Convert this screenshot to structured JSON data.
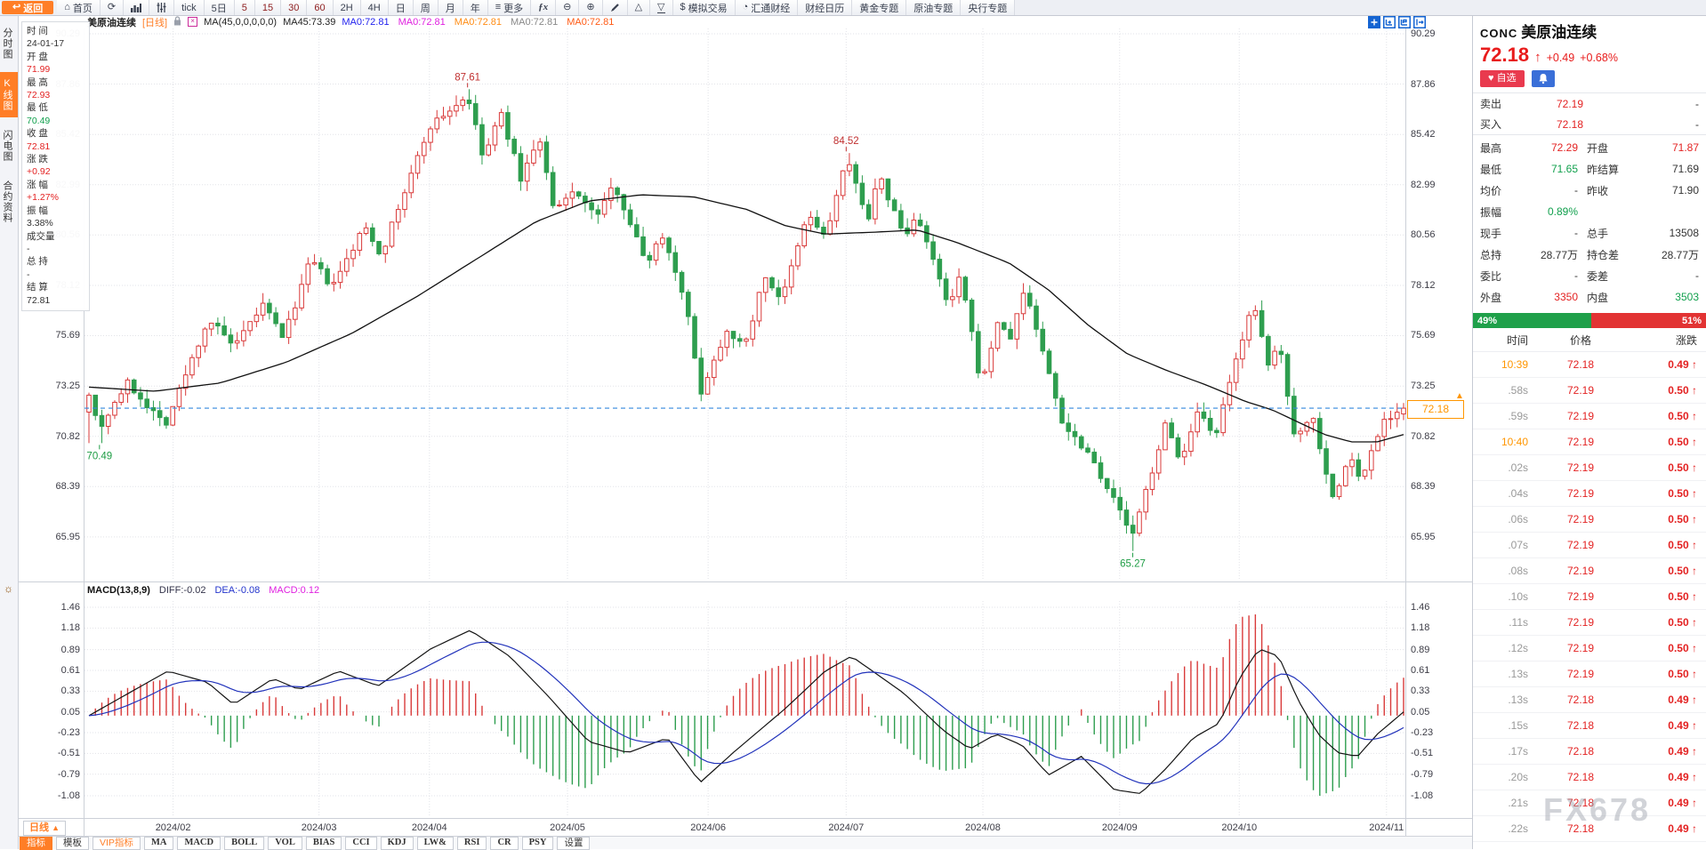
{
  "toolbar": {
    "items": [
      {
        "id": "back",
        "label": "返回",
        "icon": "back",
        "style": "back"
      },
      {
        "id": "home",
        "label": "首页",
        "icon": "home"
      },
      {
        "id": "refresh",
        "icon": "refresh"
      },
      {
        "id": "chart-style",
        "icon": "bars"
      },
      {
        "id": "indicator-params",
        "icon": "sliders"
      },
      {
        "id": "period-tick",
        "label": "tick"
      },
      {
        "id": "period-5d",
        "label": "5日"
      },
      {
        "id": "period-5",
        "label": "5",
        "red": true
      },
      {
        "id": "period-15",
        "label": "15",
        "red": true
      },
      {
        "id": "period-30",
        "label": "30",
        "red": true
      },
      {
        "id": "period-60",
        "label": "60",
        "red": true
      },
      {
        "id": "period-2h",
        "label": "2H"
      },
      {
        "id": "period-4h",
        "label": "4H"
      },
      {
        "id": "period-day",
        "label": "日"
      },
      {
        "id": "period-week",
        "label": "周"
      },
      {
        "id": "period-month",
        "label": "月"
      },
      {
        "id": "period-year",
        "label": "年"
      },
      {
        "id": "more",
        "label": "更多",
        "icon": "menu"
      },
      {
        "id": "formula",
        "icon": "fx"
      },
      {
        "id": "zoom-out",
        "icon": "zoomout"
      },
      {
        "id": "zoom-in",
        "icon": "zoomin"
      },
      {
        "id": "draw-pen",
        "icon": "pen"
      },
      {
        "id": "shape-up",
        "icon": "triup"
      },
      {
        "id": "shape-down",
        "icon": "tridown",
        "underline": true
      },
      {
        "id": "sim-trading",
        "label": "模拟交易",
        "icon": "dollar"
      },
      {
        "id": "fx678-news",
        "label": "汇通财经",
        "icon": "globe"
      },
      {
        "id": "calendar",
        "label": "财经日历"
      },
      {
        "id": "gold-topic",
        "label": "黄金专题"
      },
      {
        "id": "oil-topic",
        "label": "原油专题"
      },
      {
        "id": "centralbank-topic",
        "label": "央行专题"
      }
    ]
  },
  "sidebar": {
    "tabs": [
      {
        "label": "分时图",
        "active": false
      },
      {
        "label": "K线图",
        "active": true
      },
      {
        "label": "闪电图",
        "active": false
      },
      {
        "label": "合约资料",
        "active": false
      }
    ]
  },
  "info_panel": {
    "rows": [
      {
        "label": "时 间",
        "value": "24-01-17",
        "color": "dark"
      },
      {
        "label": "开 盘",
        "value": "71.99",
        "color": "red"
      },
      {
        "label": "最 高",
        "value": "72.93",
        "color": "red"
      },
      {
        "label": "最 低",
        "value": "70.49",
        "color": "green"
      },
      {
        "label": "收 盘",
        "value": "72.81",
        "color": "red"
      },
      {
        "label": "涨 跌",
        "value": "+0.92",
        "color": "red"
      },
      {
        "label": "涨 幅",
        "value": "+1.27%",
        "color": "red"
      },
      {
        "label": "振 幅",
        "value": "3.38%",
        "color": "dark"
      },
      {
        "label": "成交量",
        "value": "-",
        "color": "dark"
      },
      {
        "label": "总 持",
        "value": "-",
        "color": "dark"
      },
      {
        "label": "结 算",
        "value": "72.81",
        "color": "dark"
      }
    ]
  },
  "chart_header": {
    "symbol": "美原油连续",
    "period": "[日线]",
    "ma_formula": "MA(45,0,0,0,0,0)",
    "ma45": "MA45:73.39",
    "ma_values": [
      {
        "text": "MA0:72.81",
        "color": "#2222ee"
      },
      {
        "text": "MA0:72.81",
        "color": "#e020e0"
      },
      {
        "text": "MA0:72.81",
        "color": "#ff8c14"
      },
      {
        "text": "MA0:72.81",
        "color": "#888888"
      },
      {
        "text": "MA0:72.81",
        "color": "#ff5a14"
      }
    ]
  },
  "corner_icons": [
    "crosshair-icon",
    "pane-merge-icon",
    "pane-flag-icon",
    "pane-shift-icon"
  ],
  "macd_header": {
    "title": "MACD(13,8,9)",
    "items": [
      {
        "text": "DIFF:-0.02",
        "color": "#33334a"
      },
      {
        "text": "DEA:-0.08",
        "color": "#2233cc"
      },
      {
        "text": "MACD:0.12",
        "color": "#e020e0"
      }
    ]
  },
  "bottom_bar": {
    "period": "日线",
    "period_arrow": "▲",
    "tabs": [
      {
        "label": "指标",
        "style": "active"
      },
      {
        "label": "模板",
        "style": ""
      },
      {
        "label": "VIP指标",
        "style": "vip"
      },
      {
        "label": "MA",
        "style": "en"
      },
      {
        "label": "MACD",
        "style": "en"
      },
      {
        "label": "BOLL",
        "style": "en"
      },
      {
        "label": "VOL",
        "style": "en"
      },
      {
        "label": "BIAS",
        "style": "en"
      },
      {
        "label": "CCI",
        "style": "en"
      },
      {
        "label": "KDJ",
        "style": "en"
      },
      {
        "label": "LW&",
        "style": "en"
      },
      {
        "label": "RSI",
        "style": "en"
      },
      {
        "label": "CR",
        "style": "en"
      },
      {
        "label": "PSY",
        "style": "en"
      },
      {
        "label": "设置",
        "style": ""
      }
    ]
  },
  "right_panel": {
    "code": "CONC",
    "name": "美原油连续",
    "price": "72.18",
    "arrow": "↑",
    "change": "+0.49",
    "change_pct": "+0.68%",
    "watch_button": "自选",
    "heart": "♥",
    "rows2col": [
      {
        "label": "卖出",
        "value": "72.19",
        "vc": "red",
        "extra": "-"
      },
      {
        "label": "买入",
        "value": "72.18",
        "vc": "red",
        "extra": "-"
      }
    ],
    "grid": [
      {
        "l1": "最高",
        "v1": "72.29",
        "c1": "red",
        "l2": "开盘",
        "v2": "71.87",
        "c2": "red"
      },
      {
        "l1": "最低",
        "v1": "71.65",
        "c1": "green",
        "l2": "昨结算",
        "v2": "71.69",
        "c2": "dark"
      },
      {
        "l1": "均价",
        "v1": "-",
        "c1": "dark",
        "l2": "昨收",
        "v2": "71.90",
        "c2": "dark"
      },
      {
        "l1": "振幅",
        "v1": "0.89%",
        "c1": "green",
        "l2": "",
        "v2": "",
        "c2": "dark"
      },
      {
        "l1": "现手",
        "v1": "-",
        "c1": "dark",
        "l2": "总手",
        "v2": "13508",
        "c2": "dark"
      },
      {
        "l1": "总持",
        "v1": "28.77万",
        "c1": "dark",
        "l2": "持仓差",
        "v2": "28.77万",
        "c2": "dark"
      },
      {
        "l1": "委比",
        "v1": "-",
        "c1": "dark",
        "l2": "委差",
        "v2": "-",
        "c2": "dark"
      },
      {
        "l1": "外盘",
        "v1": "3350",
        "c1": "red",
        "l2": "内盘",
        "v2": "3503",
        "c2": "green"
      }
    ],
    "ratio_bar": {
      "left_pct": 49,
      "left_label": "49%",
      "right_label": "51%"
    },
    "tick_table": {
      "headers": [
        "时间",
        "价格",
        "涨跌"
      ],
      "rows": [
        {
          "time": "10:39",
          "price": "72.18",
          "change": "0.49",
          "hl": true
        },
        {
          "time": ".58s",
          "price": "72.19",
          "change": "0.50",
          "hl": false
        },
        {
          "time": ".59s",
          "price": "72.19",
          "change": "0.50",
          "hl": false
        },
        {
          "time": "10:40",
          "price": "72.19",
          "change": "0.50",
          "hl": true
        },
        {
          "time": ".02s",
          "price": "72.19",
          "change": "0.50",
          "hl": false
        },
        {
          "time": ".04s",
          "price": "72.19",
          "change": "0.50",
          "hl": false
        },
        {
          "time": ".06s",
          "price": "72.19",
          "change": "0.50",
          "hl": false
        },
        {
          "time": ".07s",
          "price": "72.19",
          "change": "0.50",
          "hl": false
        },
        {
          "time": ".08s",
          "price": "72.19",
          "change": "0.50",
          "hl": false
        },
        {
          "time": ".10s",
          "price": "72.19",
          "change": "0.50",
          "hl": false
        },
        {
          "time": ".11s",
          "price": "72.19",
          "change": "0.50",
          "hl": false
        },
        {
          "time": ".12s",
          "price": "72.19",
          "change": "0.50",
          "hl": false
        },
        {
          "time": ".13s",
          "price": "72.19",
          "change": "0.50",
          "hl": false
        },
        {
          "time": ".13s",
          "price": "72.18",
          "change": "0.49",
          "hl": false
        },
        {
          "time": ".15s",
          "price": "72.18",
          "change": "0.49",
          "hl": false
        },
        {
          "time": ".17s",
          "price": "72.18",
          "change": "0.49",
          "hl": false
        },
        {
          "time": ".20s",
          "price": "72.18",
          "change": "0.49",
          "hl": false
        },
        {
          "time": ".21s",
          "price": "72.18",
          "change": "0.49",
          "hl": false
        },
        {
          "time": ".22s",
          "price": "72.18",
          "change": "0.49",
          "hl": false
        }
      ]
    }
  },
  "watermark": "FX678",
  "chart_data": {
    "type": "candlestick",
    "symbol": "美原油连续 (US crude oil continuous, daily K-line with MA45 and MACD(13,8,9))",
    "x_labels": [
      "2024/02",
      "2024/03",
      "2024/04",
      "2024/05",
      "2024/06",
      "2024/07",
      "2024/08",
      "2024/09",
      "2024/10",
      "2024/11"
    ],
    "x_label_ts": [
      0.064,
      0.175,
      0.259,
      0.364,
      0.471,
      0.576,
      0.68,
      0.784,
      0.875,
      0.987
    ],
    "main": {
      "y_ticks": [
        90.29,
        87.86,
        85.42,
        82.99,
        80.56,
        78.12,
        75.69,
        73.25,
        70.82,
        68.39,
        65.95
      ],
      "price_line": 72.18,
      "price_tag": "72.18",
      "num_candles": 205,
      "first_candle": {
        "date": "24-01-17",
        "open": 71.99,
        "high": 72.93,
        "low": 70.49,
        "close": 72.81
      },
      "last_close": 72.18,
      "annotations": [
        {
          "t": 0.288,
          "price": 87.61,
          "label": "87.61",
          "side": "above",
          "color": "#c03030"
        },
        {
          "t": 0.576,
          "price": 84.52,
          "label": "84.52",
          "side": "above",
          "color": "#c03030"
        },
        {
          "t": 0.008,
          "price": 70.49,
          "label": "70.49",
          "side": "below",
          "color": "#1f9d45"
        },
        {
          "t": 0.794,
          "price": 65.27,
          "label": "65.27",
          "side": "below",
          "color": "#1f9d45"
        }
      ],
      "close_path": [
        [
          0.0,
          72.8
        ],
        [
          0.008,
          71.2
        ],
        [
          0.02,
          72.5
        ],
        [
          0.029,
          73.4
        ],
        [
          0.058,
          71.4
        ],
        [
          0.091,
          76.5
        ],
        [
          0.111,
          75.1
        ],
        [
          0.132,
          77.2
        ],
        [
          0.148,
          75.6
        ],
        [
          0.169,
          79.4
        ],
        [
          0.185,
          78.0
        ],
        [
          0.21,
          81.0
        ],
        [
          0.222,
          79.6
        ],
        [
          0.259,
          85.8
        ],
        [
          0.288,
          87.3
        ],
        [
          0.3,
          84.2
        ],
        [
          0.313,
          86.5
        ],
        [
          0.329,
          83.2
        ],
        [
          0.342,
          85.4
        ],
        [
          0.354,
          81.6
        ],
        [
          0.37,
          82.8
        ],
        [
          0.385,
          81.4
        ],
        [
          0.4,
          83.0
        ],
        [
          0.424,
          79.2
        ],
        [
          0.436,
          80.6
        ],
        [
          0.453,
          77.6
        ],
        [
          0.465,
          72.9
        ],
        [
          0.486,
          76.1
        ],
        [
          0.498,
          75.0
        ],
        [
          0.514,
          78.6
        ],
        [
          0.527,
          77.4
        ],
        [
          0.547,
          81.6
        ],
        [
          0.56,
          80.4
        ],
        [
          0.576,
          84.2
        ],
        [
          0.593,
          81.4
        ],
        [
          0.601,
          83.4
        ],
        [
          0.621,
          80.4
        ],
        [
          0.63,
          81.6
        ],
        [
          0.654,
          77.0
        ],
        [
          0.663,
          78.6
        ],
        [
          0.679,
          73.2
        ],
        [
          0.691,
          76.4
        ],
        [
          0.7,
          75.4
        ],
        [
          0.712,
          78.0
        ],
        [
          0.741,
          71.4
        ],
        [
          0.761,
          70.0
        ],
        [
          0.794,
          66.0
        ],
        [
          0.819,
          71.4
        ],
        [
          0.831,
          69.6
        ],
        [
          0.844,
          72.0
        ],
        [
          0.856,
          70.6
        ],
        [
          0.885,
          77.4
        ],
        [
          0.897,
          74.2
        ],
        [
          0.905,
          75.4
        ],
        [
          0.918,
          70.6
        ],
        [
          0.93,
          72.0
        ],
        [
          0.947,
          67.6
        ],
        [
          0.959,
          70.0
        ],
        [
          0.967,
          68.6
        ],
        [
          0.984,
          71.6
        ],
        [
          1.0,
          72.18
        ]
      ],
      "ma45_path": [
        [
          0.0,
          73.2
        ],
        [
          0.05,
          73.0
        ],
        [
          0.1,
          73.4
        ],
        [
          0.15,
          74.4
        ],
        [
          0.2,
          75.8
        ],
        [
          0.25,
          77.6
        ],
        [
          0.3,
          79.6
        ],
        [
          0.34,
          81.2
        ],
        [
          0.38,
          82.2
        ],
        [
          0.42,
          82.5
        ],
        [
          0.46,
          82.4
        ],
        [
          0.5,
          81.8
        ],
        [
          0.53,
          81.0
        ],
        [
          0.56,
          80.6
        ],
        [
          0.6,
          80.7
        ],
        [
          0.63,
          80.8
        ],
        [
          0.66,
          80.2
        ],
        [
          0.7,
          79.2
        ],
        [
          0.73,
          77.9
        ],
        [
          0.76,
          76.2
        ],
        [
          0.79,
          74.8
        ],
        [
          0.82,
          74.0
        ],
        [
          0.85,
          73.3
        ],
        [
          0.88,
          72.5
        ],
        [
          0.9,
          72.1
        ],
        [
          0.92,
          71.5
        ],
        [
          0.94,
          70.9
        ],
        [
          0.96,
          70.55
        ],
        [
          0.98,
          70.55
        ],
        [
          1.0,
          70.9
        ]
      ]
    },
    "macd": {
      "params": "13,8,9",
      "y_ticks": [
        1.46,
        1.18,
        0.89,
        0.61,
        0.33,
        0.05,
        -0.23,
        -0.51,
        -0.79,
        -1.08
      ],
      "diff_path": [
        [
          0.0,
          0.0
        ],
        [
          0.03,
          0.3
        ],
        [
          0.06,
          0.6
        ],
        [
          0.09,
          0.45
        ],
        [
          0.11,
          0.15
        ],
        [
          0.14,
          0.5
        ],
        [
          0.16,
          0.35
        ],
        [
          0.19,
          0.6
        ],
        [
          0.22,
          0.4
        ],
        [
          0.26,
          0.9
        ],
        [
          0.29,
          1.15
        ],
        [
          0.32,
          0.8
        ],
        [
          0.35,
          0.25
        ],
        [
          0.38,
          -0.35
        ],
        [
          0.41,
          -0.5
        ],
        [
          0.44,
          -0.3
        ],
        [
          0.465,
          -0.9
        ],
        [
          0.49,
          -0.5
        ],
        [
          0.51,
          -0.2
        ],
        [
          0.53,
          0.1
        ],
        [
          0.56,
          0.6
        ],
        [
          0.58,
          0.8
        ],
        [
          0.6,
          0.55
        ],
        [
          0.62,
          0.3
        ],
        [
          0.65,
          -0.2
        ],
        [
          0.67,
          -0.45
        ],
        [
          0.69,
          -0.25
        ],
        [
          0.71,
          -0.4
        ],
        [
          0.73,
          -0.8
        ],
        [
          0.755,
          -0.55
        ],
        [
          0.78,
          -1.0
        ],
        [
          0.8,
          -1.05
        ],
        [
          0.82,
          -0.7
        ],
        [
          0.84,
          -0.3
        ],
        [
          0.86,
          -0.1
        ],
        [
          0.875,
          0.5
        ],
        [
          0.89,
          0.9
        ],
        [
          0.905,
          0.8
        ],
        [
          0.92,
          0.2
        ],
        [
          0.935,
          -0.25
        ],
        [
          0.95,
          -0.5
        ],
        [
          0.965,
          -0.55
        ],
        [
          0.98,
          -0.25
        ],
        [
          1.0,
          0.05
        ]
      ]
    },
    "colors": {
      "up": "#d93a3a",
      "down": "#2e9e4f",
      "ma": "#111111",
      "dea": "#2233bb",
      "diff": "#141414",
      "price_line": "#3388dd",
      "grid": "#e2e3e8"
    },
    "legend_position": "top-left",
    "grid": true
  }
}
